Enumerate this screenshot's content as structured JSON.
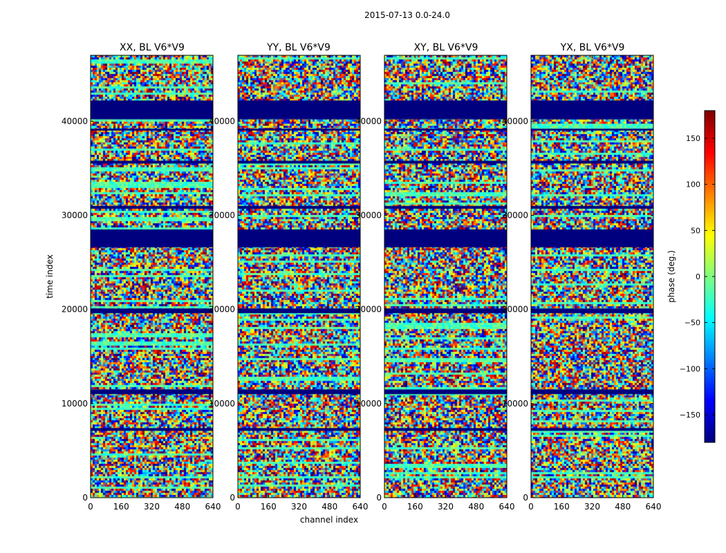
{
  "suptitle": "2015-07-13 0.0-24.0",
  "chart_data": [
    {
      "type": "heatmap",
      "title": "XX, BL V6*V9",
      "xlabel": "",
      "ylabel": "time index",
      "xlim": [
        0,
        640
      ],
      "ylim": [
        0,
        47000
      ],
      "xticks": [
        "0",
        "160",
        "320",
        "480",
        "640"
      ],
      "yticks": [
        "0",
        "10000",
        "20000",
        "30000",
        "40000"
      ],
      "xtick_values": [
        0,
        160,
        320,
        480,
        640
      ],
      "ytick_values": [
        0,
        10000,
        20000,
        30000,
        40000
      ],
      "panel_seed": 11
    },
    {
      "type": "heatmap",
      "title": "YY, BL V6*V9",
      "xlabel": "channel index",
      "ylabel": "",
      "xlim": [
        0,
        640
      ],
      "ylim": [
        0,
        47000
      ],
      "xticks": [
        "0",
        "160",
        "320",
        "480",
        "640"
      ],
      "yticks": [
        "0",
        "10000",
        "20000",
        "30000",
        "40000"
      ],
      "xtick_values": [
        0,
        160,
        320,
        480,
        640
      ],
      "ytick_values": [
        0,
        10000,
        20000,
        30000,
        40000
      ],
      "panel_seed": 23
    },
    {
      "type": "heatmap",
      "title": "XY, BL V6*V9",
      "xlabel": "",
      "ylabel": "",
      "xlim": [
        0,
        640
      ],
      "ylim": [
        0,
        47000
      ],
      "xticks": [
        "0",
        "160",
        "320",
        "480",
        "640"
      ],
      "yticks": [
        "0",
        "10000",
        "20000",
        "30000",
        "40000"
      ],
      "xtick_values": [
        0,
        160,
        320,
        480,
        640
      ],
      "ytick_values": [
        0,
        10000,
        20000,
        30000,
        40000
      ],
      "panel_seed": 37
    },
    {
      "type": "heatmap",
      "title": "YX, BL V6*V9",
      "xlabel": "",
      "ylabel": "",
      "xlim": [
        0,
        640
      ],
      "ylim": [
        0,
        47000
      ],
      "xticks": [
        "0",
        "160",
        "320",
        "480",
        "640"
      ],
      "yticks": [
        "0",
        "10000",
        "20000",
        "30000",
        "40000"
      ],
      "xtick_values": [
        0,
        160,
        320,
        480,
        640
      ],
      "ytick_values": [
        0,
        10000,
        20000,
        30000,
        40000
      ],
      "panel_seed": 53
    }
  ],
  "colorbar": {
    "label": "phase (deg.)",
    "range": [
      -180,
      180
    ],
    "ticks": [
      "150",
      "100",
      "50",
      "0",
      "−50",
      "−100",
      "−150"
    ],
    "tick_values": [
      150,
      100,
      50,
      0,
      -50,
      -100,
      -150
    ],
    "colormap": "jet"
  },
  "flagged_bands": [
    [
      40200,
      42200
    ],
    [
      26600,
      28500
    ],
    [
      19600,
      20100
    ],
    [
      11000,
      11500
    ],
    [
      7100,
      7400
    ],
    [
      30700,
      31000
    ],
    [
      39000,
      39200
    ],
    [
      35500,
      35800
    ]
  ],
  "colors": {
    "flag": "#00007f",
    "axis": "#000000",
    "background": "#ffffff"
  }
}
